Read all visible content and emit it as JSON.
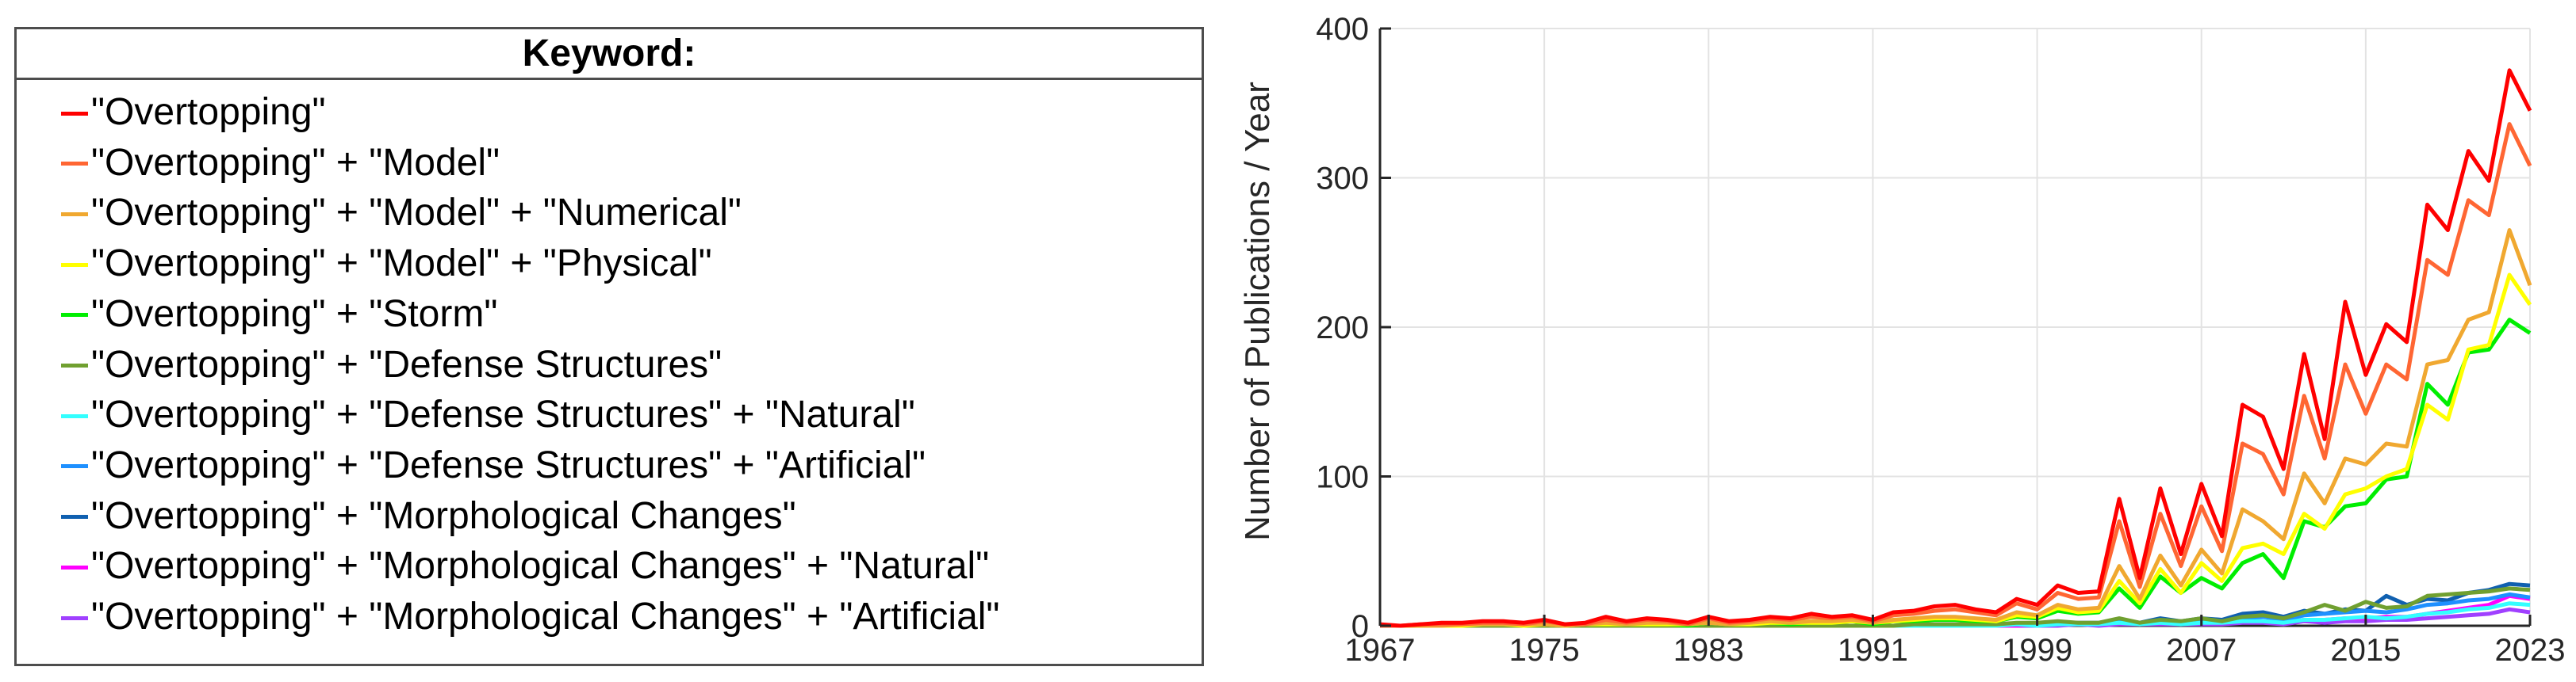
{
  "legend": {
    "title": "Keyword:"
  },
  "chart_data": {
    "type": "line",
    "title": "",
    "xlabel": "",
    "ylabel": "Number of Publications / Year",
    "xlim": [
      1967,
      2023
    ],
    "ylim": [
      0,
      400
    ],
    "xticks": [
      1967,
      1975,
      1983,
      1991,
      1999,
      2007,
      2015,
      2023
    ],
    "yticks": [
      0,
      100,
      200,
      300,
      400
    ],
    "grid": true,
    "legend_position": "left-outside",
    "x": [
      1967,
      1968,
      1969,
      1970,
      1971,
      1972,
      1973,
      1974,
      1975,
      1976,
      1977,
      1978,
      1979,
      1980,
      1981,
      1982,
      1983,
      1984,
      1985,
      1986,
      1987,
      1988,
      1989,
      1990,
      1991,
      1992,
      1993,
      1994,
      1995,
      1996,
      1997,
      1998,
      1999,
      2000,
      2001,
      2002,
      2003,
      2004,
      2005,
      2006,
      2007,
      2008,
      2009,
      2010,
      2011,
      2012,
      2013,
      2014,
      2015,
      2016,
      2017,
      2018,
      2019,
      2020,
      2021,
      2022,
      2023
    ],
    "series": [
      {
        "name": "\"Overtopping\"",
        "color": "#ff0000",
        "values": [
          1,
          0,
          1,
          2,
          2,
          3,
          3,
          2,
          4,
          1,
          2,
          6,
          3,
          5,
          4,
          2,
          6,
          3,
          4,
          6,
          5,
          8,
          6,
          7,
          4,
          9,
          10,
          13,
          14,
          11,
          9,
          18,
          14,
          27,
          22,
          23,
          85,
          32,
          92,
          48,
          95,
          60,
          148,
          140,
          105,
          182,
          125,
          217,
          168,
          202,
          190,
          282,
          265,
          318,
          298,
          372,
          345
        ]
      },
      {
        "name": "\"Overtopping\" + \"Model\"",
        "color": "#ff6633",
        "values": [
          0,
          0,
          1,
          1,
          1,
          2,
          2,
          1,
          3,
          1,
          1,
          4,
          2,
          4,
          3,
          1,
          5,
          2,
          3,
          5,
          4,
          6,
          5,
          6,
          3,
          7,
          8,
          10,
          11,
          9,
          7,
          15,
          11,
          22,
          18,
          19,
          70,
          26,
          75,
          40,
          80,
          50,
          122,
          115,
          88,
          154,
          112,
          175,
          142,
          175,
          165,
          245,
          235,
          285,
          275,
          336,
          308
        ]
      },
      {
        "name": "\"Overtopping\" + \"Model\" + \"Numerical\"",
        "color": "#f0a830",
        "values": [
          0,
          0,
          0,
          0,
          1,
          1,
          1,
          1,
          1,
          0,
          1,
          2,
          1,
          2,
          2,
          1,
          2,
          1,
          2,
          3,
          2,
          3,
          3,
          4,
          2,
          4,
          5,
          6,
          6,
          5,
          4,
          9,
          7,
          14,
          11,
          12,
          40,
          18,
          47,
          27,
          51,
          35,
          78,
          70,
          58,
          102,
          82,
          112,
          108,
          122,
          120,
          175,
          178,
          205,
          210,
          265,
          228
        ]
      },
      {
        "name": "\"Overtopping\" + \"Model\" + \"Physical\"",
        "color": "#ffff00",
        "values": [
          0,
          0,
          0,
          0,
          0,
          1,
          1,
          0,
          1,
          0,
          1,
          1,
          1,
          1,
          1,
          1,
          2,
          1,
          1,
          2,
          2,
          2,
          2,
          3,
          2,
          3,
          4,
          5,
          5,
          4,
          3,
          7,
          6,
          12,
          9,
          10,
          30,
          15,
          38,
          22,
          42,
          30,
          52,
          55,
          48,
          75,
          65,
          88,
          92,
          100,
          105,
          148,
          138,
          185,
          188,
          235,
          215
        ]
      },
      {
        "name": "\"Overtopping\" + \"Storm\"",
        "color": "#00ee00",
        "values": [
          0,
          0,
          0,
          0,
          0,
          1,
          1,
          0,
          1,
          0,
          1,
          1,
          1,
          1,
          1,
          0,
          2,
          1,
          1,
          2,
          1,
          2,
          2,
          3,
          1,
          3,
          3,
          4,
          4,
          3,
          3,
          6,
          5,
          10,
          8,
          9,
          25,
          12,
          33,
          22,
          32,
          25,
          42,
          48,
          32,
          70,
          66,
          80,
          82,
          98,
          100,
          162,
          148,
          183,
          185,
          205,
          196
        ]
      },
      {
        "name": "\"Overtopping\" + \"Defense Structures\"",
        "color": "#70a030",
        "values": [
          0,
          0,
          0,
          0,
          0,
          0,
          0,
          0,
          0,
          0,
          0,
          0,
          0,
          0,
          0,
          0,
          0,
          0,
          0,
          0,
          0,
          0,
          0,
          0,
          0,
          0,
          1,
          1,
          1,
          1,
          1,
          2,
          2,
          3,
          2,
          2,
          5,
          2,
          4,
          3,
          5,
          3,
          6,
          7,
          5,
          9,
          14,
          10,
          16,
          12,
          13,
          20,
          21,
          22,
          23,
          25,
          24
        ]
      },
      {
        "name": "\"Overtopping\" + \"Defense Structures\" + \"Natural\"",
        "color": "#33ffff",
        "values": [
          0,
          0,
          0,
          0,
          0,
          0,
          0,
          0,
          0,
          0,
          0,
          0,
          0,
          0,
          0,
          0,
          0,
          0,
          0,
          0,
          0,
          0,
          0,
          0,
          0,
          0,
          0,
          0,
          0,
          0,
          0,
          1,
          0,
          1,
          1,
          1,
          2,
          1,
          2,
          1,
          2,
          2,
          3,
          3,
          2,
          4,
          4,
          5,
          6,
          5,
          6,
          8,
          9,
          11,
          12,
          15,
          14
        ]
      },
      {
        "name": "\"Overtopping\" + \"Defense Structures\" + \"Artificial\"",
        "color": "#1e90ff",
        "values": [
          0,
          0,
          0,
          0,
          0,
          0,
          0,
          0,
          0,
          0,
          0,
          0,
          0,
          0,
          0,
          0,
          0,
          0,
          0,
          0,
          0,
          0,
          0,
          0,
          0,
          0,
          0,
          0,
          1,
          0,
          1,
          1,
          1,
          2,
          1,
          1,
          3,
          2,
          3,
          2,
          4,
          3,
          5,
          6,
          4,
          7,
          8,
          9,
          10,
          9,
          11,
          14,
          15,
          17,
          18,
          21,
          19
        ]
      },
      {
        "name": "\"Overtopping\" + \"Morphological Changes\"",
        "color": "#1060b0",
        "values": [
          0,
          0,
          0,
          0,
          0,
          0,
          0,
          0,
          0,
          0,
          0,
          0,
          0,
          0,
          0,
          0,
          0,
          0,
          0,
          0,
          0,
          0,
          0,
          0,
          0,
          0,
          1,
          1,
          1,
          1,
          1,
          1,
          2,
          2,
          2,
          2,
          4,
          2,
          5,
          3,
          5,
          4,
          8,
          9,
          6,
          10,
          8,
          11,
          10,
          20,
          14,
          18,
          17,
          22,
          24,
          28,
          27
        ]
      },
      {
        "name": "\"Overtopping\" + \"Morphological Changes\" + \"Natural\"",
        "color": "#ff00ff",
        "values": [
          0,
          0,
          0,
          0,
          0,
          0,
          0,
          0,
          0,
          0,
          0,
          0,
          0,
          0,
          0,
          0,
          0,
          0,
          0,
          0,
          0,
          0,
          0,
          0,
          0,
          0,
          0,
          0,
          0,
          0,
          0,
          0,
          1,
          1,
          1,
          1,
          2,
          1,
          2,
          1,
          2,
          2,
          3,
          3,
          2,
          4,
          4,
          5,
          5,
          6,
          6,
          8,
          10,
          12,
          14,
          20,
          18
        ]
      },
      {
        "name": "\"Overtopping\" + \"Morphological Changes\" + \"Artificial\"",
        "color": "#a040ff",
        "values": [
          0,
          0,
          0,
          0,
          0,
          0,
          0,
          0,
          0,
          0,
          0,
          0,
          0,
          0,
          0,
          0,
          0,
          0,
          0,
          0,
          0,
          0,
          0,
          0,
          0,
          0,
          0,
          0,
          0,
          0,
          0,
          0,
          0,
          0,
          1,
          0,
          1,
          1,
          1,
          1,
          1,
          1,
          2,
          2,
          1,
          3,
          2,
          3,
          3,
          4,
          4,
          5,
          6,
          7,
          8,
          11,
          9
        ]
      }
    ]
  }
}
